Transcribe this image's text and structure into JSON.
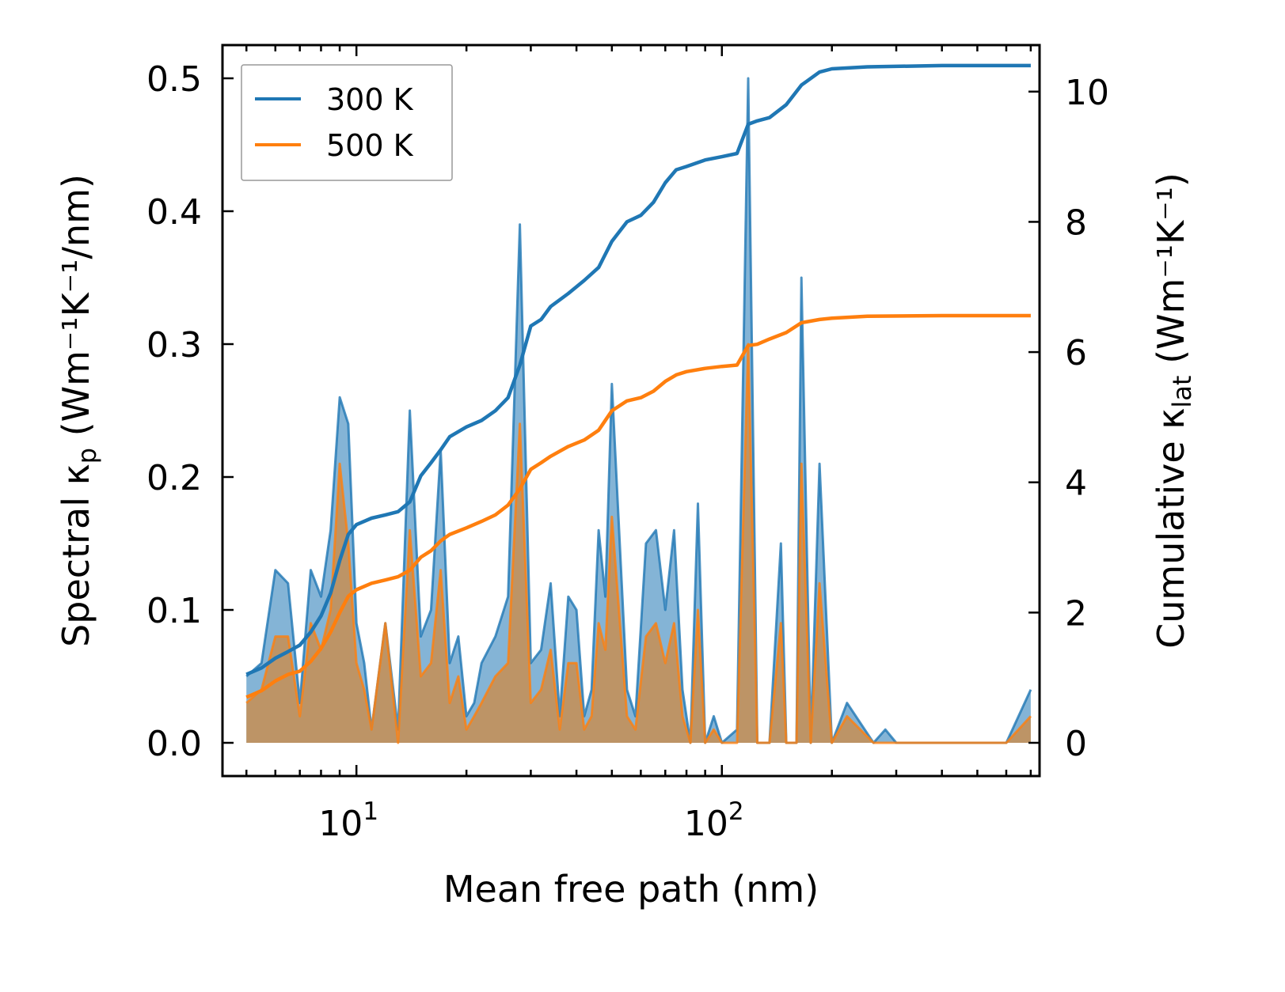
{
  "chart_data": {
    "type": "line",
    "xscale": "log",
    "xlim": [
      4.3,
      740
    ],
    "ylim_left": [
      -0.025,
      0.525
    ],
    "ylim_right": [
      -0.5103,
      10.7143
    ],
    "xlabel": "Mean free path (nm)",
    "ylabel_left": {
      "main": "Spectral κ",
      "sub": "p",
      "tail": " (Wm⁻¹K⁻¹/nm)"
    },
    "ylabel_right": {
      "main": "Cumulative κ",
      "sub": "lat",
      "tail": " (Wm⁻¹K⁻¹)"
    },
    "x_tick_labels": [
      {
        "value": 10,
        "base": "10",
        "exp": "1"
      },
      {
        "value": 100,
        "base": "10",
        "exp": "2"
      }
    ],
    "y_left_ticks": [
      {
        "value": 0.0,
        "label": "0.0"
      },
      {
        "value": 0.1,
        "label": "0.1"
      },
      {
        "value": 0.2,
        "label": "0.2"
      },
      {
        "value": 0.3,
        "label": "0.3"
      },
      {
        "value": 0.4,
        "label": "0.4"
      },
      {
        "value": 0.5,
        "label": "0.5"
      }
    ],
    "y_right_ticks": [
      {
        "value": 0,
        "label": "0"
      },
      {
        "value": 2,
        "label": "2"
      },
      {
        "value": 4,
        "label": "4"
      },
      {
        "value": 6,
        "label": "6"
      },
      {
        "value": 8,
        "label": "8"
      },
      {
        "value": 10,
        "label": "10"
      }
    ],
    "legend": {
      "position": "top-left",
      "entries": [
        {
          "label": "300 K",
          "color": "#1f77b4"
        },
        {
          "label": "500 K",
          "color": "#ff7f0e"
        }
      ]
    },
    "series": [
      {
        "name": "300 K",
        "color": "#1f77b4",
        "fill": "#1f77b4",
        "spectral": [
          [
            5,
            0.05
          ],
          [
            5.5,
            0.06
          ],
          [
            6,
            0.13
          ],
          [
            6.5,
            0.12
          ],
          [
            7,
            0.03
          ],
          [
            7.5,
            0.13
          ],
          [
            8,
            0.11
          ],
          [
            8.5,
            0.16
          ],
          [
            9,
            0.26
          ],
          [
            9.5,
            0.24
          ],
          [
            10,
            0.09
          ],
          [
            10.5,
            0.06
          ],
          [
            11,
            0.01
          ],
          [
            12,
            0.09
          ],
          [
            13,
            0.01
          ],
          [
            14,
            0.25
          ],
          [
            15,
            0.08
          ],
          [
            16,
            0.1
          ],
          [
            17,
            0.22
          ],
          [
            18,
            0.06
          ],
          [
            19,
            0.08
          ],
          [
            20,
            0.02
          ],
          [
            21,
            0.03
          ],
          [
            22,
            0.06
          ],
          [
            24,
            0.08
          ],
          [
            26,
            0.11
          ],
          [
            28,
            0.39
          ],
          [
            30,
            0.06
          ],
          [
            32,
            0.07
          ],
          [
            34,
            0.12
          ],
          [
            36,
            0.02
          ],
          [
            38,
            0.11
          ],
          [
            40,
            0.1
          ],
          [
            42,
            0.02
          ],
          [
            44,
            0.04
          ],
          [
            46,
            0.16
          ],
          [
            48,
            0.11
          ],
          [
            50,
            0.27
          ],
          [
            55,
            0.04
          ],
          [
            58,
            0.02
          ],
          [
            62,
            0.15
          ],
          [
            66,
            0.16
          ],
          [
            70,
            0.1
          ],
          [
            74,
            0.16
          ],
          [
            78,
            0.04
          ],
          [
            82,
            0.0
          ],
          [
            86,
            0.18
          ],
          [
            90,
            0.0
          ],
          [
            95,
            0.02
          ],
          [
            100,
            0.0
          ],
          [
            110,
            0.01
          ],
          [
            118,
            0.5
          ],
          [
            125,
            0.0
          ],
          [
            135,
            0.0
          ],
          [
            145,
            0.15
          ],
          [
            150,
            0.0
          ],
          [
            160,
            0.0
          ],
          [
            165,
            0.35
          ],
          [
            175,
            0.0
          ],
          [
            185,
            0.21
          ],
          [
            200,
            0.0
          ],
          [
            220,
            0.03
          ],
          [
            260,
            0.0
          ],
          [
            280,
            0.01
          ],
          [
            300,
            0.0
          ],
          [
            400,
            0.0
          ],
          [
            600,
            0.0
          ],
          [
            700,
            0.04
          ]
        ],
        "cumulative": [
          [
            5,
            1.05
          ],
          [
            5.5,
            1.15
          ],
          [
            6,
            1.3
          ],
          [
            6.5,
            1.4
          ],
          [
            7,
            1.5
          ],
          [
            7.5,
            1.7
          ],
          [
            8,
            1.95
          ],
          [
            8.5,
            2.3
          ],
          [
            9,
            2.8
          ],
          [
            9.5,
            3.2
          ],
          [
            10,
            3.35
          ],
          [
            11,
            3.45
          ],
          [
            12,
            3.5
          ],
          [
            13,
            3.55
          ],
          [
            14,
            3.7
          ],
          [
            15,
            4.1
          ],
          [
            16,
            4.3
          ],
          [
            17,
            4.5
          ],
          [
            18,
            4.7
          ],
          [
            20,
            4.85
          ],
          [
            22,
            4.95
          ],
          [
            24,
            5.1
          ],
          [
            26,
            5.3
          ],
          [
            28,
            5.8
          ],
          [
            30,
            6.4
          ],
          [
            32,
            6.5
          ],
          [
            34,
            6.7
          ],
          [
            38,
            6.9
          ],
          [
            42,
            7.1
          ],
          [
            46,
            7.3
          ],
          [
            50,
            7.7
          ],
          [
            55,
            8.0
          ],
          [
            60,
            8.1
          ],
          [
            65,
            8.3
          ],
          [
            70,
            8.6
          ],
          [
            75,
            8.8
          ],
          [
            80,
            8.85
          ],
          [
            90,
            8.95
          ],
          [
            100,
            9.0
          ],
          [
            110,
            9.05
          ],
          [
            118,
            9.5
          ],
          [
            125,
            9.55
          ],
          [
            135,
            9.6
          ],
          [
            150,
            9.8
          ],
          [
            165,
            10.1
          ],
          [
            185,
            10.3
          ],
          [
            200,
            10.35
          ],
          [
            250,
            10.38
          ],
          [
            400,
            10.4
          ],
          [
            700,
            10.4
          ]
        ]
      },
      {
        "name": "500 K",
        "color": "#ff7f0e",
        "fill": "#d08a40",
        "spectral": [
          [
            5,
            0.03
          ],
          [
            5.5,
            0.04
          ],
          [
            6,
            0.08
          ],
          [
            6.5,
            0.08
          ],
          [
            7,
            0.02
          ],
          [
            7.5,
            0.09
          ],
          [
            8,
            0.07
          ],
          [
            8.5,
            0.1
          ],
          [
            9,
            0.21
          ],
          [
            9.5,
            0.15
          ],
          [
            10,
            0.06
          ],
          [
            10.5,
            0.04
          ],
          [
            11,
            0.01
          ],
          [
            12,
            0.09
          ],
          [
            13,
            0.0
          ],
          [
            14,
            0.16
          ],
          [
            15,
            0.05
          ],
          [
            16,
            0.06
          ],
          [
            17,
            0.13
          ],
          [
            18,
            0.03
          ],
          [
            19,
            0.05
          ],
          [
            20,
            0.01
          ],
          [
            21,
            0.02
          ],
          [
            22,
            0.03
          ],
          [
            24,
            0.05
          ],
          [
            26,
            0.06
          ],
          [
            28,
            0.24
          ],
          [
            30,
            0.03
          ],
          [
            32,
            0.04
          ],
          [
            34,
            0.07
          ],
          [
            36,
            0.01
          ],
          [
            38,
            0.06
          ],
          [
            40,
            0.06
          ],
          [
            42,
            0.01
          ],
          [
            44,
            0.02
          ],
          [
            46,
            0.09
          ],
          [
            48,
            0.07
          ],
          [
            50,
            0.17
          ],
          [
            55,
            0.02
          ],
          [
            58,
            0.01
          ],
          [
            62,
            0.08
          ],
          [
            66,
            0.09
          ],
          [
            70,
            0.06
          ],
          [
            74,
            0.09
          ],
          [
            78,
            0.02
          ],
          [
            82,
            0.0
          ],
          [
            86,
            0.1
          ],
          [
            90,
            0.0
          ],
          [
            95,
            0.01
          ],
          [
            100,
            0.0
          ],
          [
            110,
            0.0
          ],
          [
            118,
            0.3
          ],
          [
            125,
            0.0
          ],
          [
            135,
            0.0
          ],
          [
            145,
            0.09
          ],
          [
            150,
            0.0
          ],
          [
            160,
            0.0
          ],
          [
            165,
            0.21
          ],
          [
            175,
            0.0
          ],
          [
            185,
            0.12
          ],
          [
            200,
            0.0
          ],
          [
            220,
            0.02
          ],
          [
            260,
            0.0
          ],
          [
            280,
            0.0
          ],
          [
            300,
            0.0
          ],
          [
            400,
            0.0
          ],
          [
            600,
            0.0
          ],
          [
            700,
            0.02
          ]
        ],
        "cumulative": [
          [
            5,
            0.7
          ],
          [
            5.5,
            0.8
          ],
          [
            6,
            0.95
          ],
          [
            6.5,
            1.05
          ],
          [
            7,
            1.1
          ],
          [
            7.5,
            1.25
          ],
          [
            8,
            1.45
          ],
          [
            8.5,
            1.7
          ],
          [
            9,
            2.0
          ],
          [
            9.5,
            2.25
          ],
          [
            10,
            2.35
          ],
          [
            11,
            2.45
          ],
          [
            12,
            2.5
          ],
          [
            13,
            2.55
          ],
          [
            14,
            2.65
          ],
          [
            15,
            2.85
          ],
          [
            16,
            2.95
          ],
          [
            17,
            3.1
          ],
          [
            18,
            3.2
          ],
          [
            20,
            3.3
          ],
          [
            22,
            3.4
          ],
          [
            24,
            3.5
          ],
          [
            26,
            3.65
          ],
          [
            28,
            3.9
          ],
          [
            30,
            4.2
          ],
          [
            32,
            4.3
          ],
          [
            34,
            4.4
          ],
          [
            38,
            4.55
          ],
          [
            42,
            4.65
          ],
          [
            46,
            4.8
          ],
          [
            50,
            5.1
          ],
          [
            55,
            5.25
          ],
          [
            60,
            5.3
          ],
          [
            65,
            5.4
          ],
          [
            70,
            5.55
          ],
          [
            75,
            5.65
          ],
          [
            80,
            5.7
          ],
          [
            90,
            5.75
          ],
          [
            100,
            5.78
          ],
          [
            110,
            5.8
          ],
          [
            118,
            6.1
          ],
          [
            125,
            6.12
          ],
          [
            135,
            6.2
          ],
          [
            150,
            6.3
          ],
          [
            165,
            6.45
          ],
          [
            185,
            6.5
          ],
          [
            200,
            6.52
          ],
          [
            250,
            6.55
          ],
          [
            400,
            6.56
          ],
          [
            700,
            6.56
          ]
        ]
      }
    ]
  }
}
